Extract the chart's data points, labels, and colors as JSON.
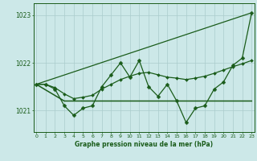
{
  "xlabel": "Graphe pression niveau de la mer (hPa)",
  "background_color": "#cce8e8",
  "line_color": "#1a5c1a",
  "grid_color": "#aacccc",
  "ylim": [
    1020.55,
    1023.25
  ],
  "yticks": [
    1021,
    1022,
    1023
  ],
  "xlim": [
    -0.3,
    23.3
  ],
  "x_ticks": [
    0,
    1,
    2,
    3,
    4,
    5,
    6,
    7,
    8,
    9,
    10,
    11,
    12,
    13,
    14,
    15,
    16,
    17,
    18,
    19,
    20,
    21,
    22,
    23
  ],
  "series": {
    "zigzag": {
      "x": [
        0,
        1,
        2,
        3,
        4,
        5,
        6,
        7,
        8,
        9,
        10,
        11,
        12,
        13,
        14,
        15,
        16,
        17,
        18,
        19,
        20,
        21,
        22,
        23
      ],
      "y": [
        1021.55,
        1021.55,
        1021.45,
        1021.1,
        1020.9,
        1021.05,
        1021.1,
        1021.5,
        1021.75,
        1022.0,
        1021.7,
        1022.05,
        1021.5,
        1021.3,
        1021.55,
        1021.2,
        1020.75,
        1021.05,
        1021.1,
        1021.45,
        1021.6,
        1021.95,
        1022.1,
        1023.05
      ]
    },
    "smooth": {
      "x": [
        0,
        1,
        2,
        3,
        4,
        5,
        6,
        7,
        8,
        9,
        10,
        11,
        12,
        13,
        14,
        15,
        16,
        17,
        18,
        19,
        20,
        21,
        22,
        23
      ],
      "y": [
        1021.55,
        1021.55,
        1021.48,
        1021.35,
        1021.25,
        1021.28,
        1021.32,
        1021.45,
        1021.55,
        1021.65,
        1021.72,
        1021.78,
        1021.8,
        1021.75,
        1021.7,
        1021.68,
        1021.65,
        1021.68,
        1021.72,
        1021.78,
        1021.85,
        1021.92,
        1021.98,
        1022.05
      ]
    },
    "flat_line": {
      "x": [
        0,
        3,
        23
      ],
      "y": [
        1021.55,
        1021.2,
        1021.2
      ]
    },
    "rising_line": {
      "x": [
        0,
        23
      ],
      "y": [
        1021.55,
        1023.05
      ]
    }
  }
}
